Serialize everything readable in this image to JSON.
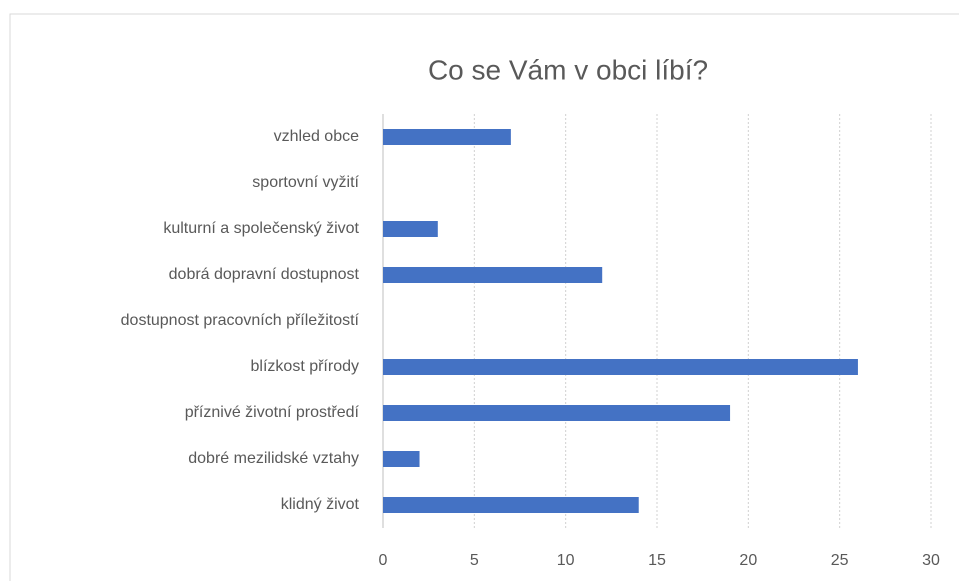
{
  "chart_data": {
    "type": "hbar",
    "title": "Co se Vám v obci líbí?",
    "categories": [
      "vzhled obce",
      "sportovní vyžití",
      "kulturní a společenský život",
      "dobrá dopravní dostupnost",
      "dostupnost pracovních příležitostí",
      "blízkost přírody",
      "příznivé životní prostředí",
      "dobré mezilidské vztahy",
      "klidný život"
    ],
    "values": [
      7,
      0,
      3,
      12,
      0,
      26,
      19,
      2,
      14
    ],
    "color": "#4472c4",
    "xlim": [
      0,
      30
    ],
    "xticks": [
      0,
      5,
      10,
      15,
      20,
      25,
      30
    ],
    "grid": true
  }
}
